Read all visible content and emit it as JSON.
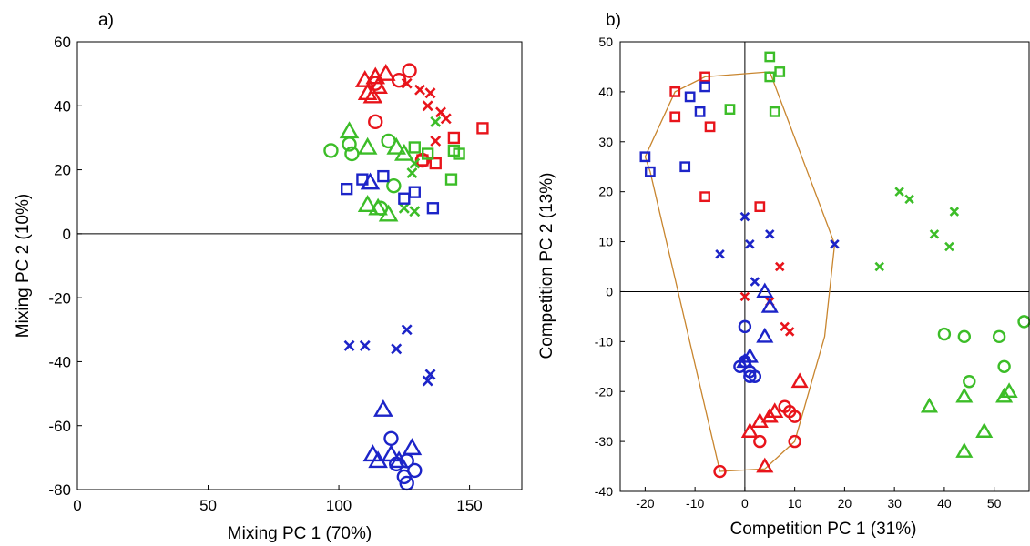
{
  "colors": {
    "red": "#e8141b",
    "green": "#3cbd28",
    "blue": "#1c24c8",
    "hull": "#c8852e",
    "axes": "#000000"
  },
  "chart_data": [
    {
      "type": "scatter",
      "panel_label": "a)",
      "xlabel": "Mixing PC 1 (70%)",
      "ylabel": "Mixing PC 2 (10%)",
      "xlim": [
        0,
        170
      ],
      "ylim": [
        -80,
        60
      ],
      "xticks": [
        0,
        50,
        100,
        150
      ],
      "yticks": [
        -80,
        -60,
        -40,
        -20,
        0,
        20,
        40,
        60
      ],
      "zero_lines": [
        "y"
      ],
      "grid": false,
      "points": [
        {
          "color": "red",
          "marker": "triangle",
          "x": 110,
          "y": 48
        },
        {
          "color": "red",
          "marker": "triangle",
          "x": 114,
          "y": 49
        },
        {
          "color": "red",
          "marker": "triangle",
          "x": 118,
          "y": 50
        },
        {
          "color": "red",
          "marker": "triangle",
          "x": 111,
          "y": 44
        },
        {
          "color": "red",
          "marker": "triangle",
          "x": 115,
          "y": 46
        },
        {
          "color": "red",
          "marker": "triangle",
          "x": 113,
          "y": 43
        },
        {
          "color": "red",
          "marker": "circle",
          "x": 114,
          "y": 47
        },
        {
          "color": "red",
          "marker": "circle",
          "x": 123,
          "y": 48
        },
        {
          "color": "red",
          "marker": "circle",
          "x": 127,
          "y": 51
        },
        {
          "color": "red",
          "marker": "circle",
          "x": 114,
          "y": 35
        },
        {
          "color": "red",
          "marker": "circle",
          "x": 132,
          "y": 23
        },
        {
          "color": "red",
          "marker": "x",
          "x": 126,
          "y": 47
        },
        {
          "color": "red",
          "marker": "x",
          "x": 131,
          "y": 45
        },
        {
          "color": "red",
          "marker": "x",
          "x": 135,
          "y": 44
        },
        {
          "color": "red",
          "marker": "x",
          "x": 134,
          "y": 40
        },
        {
          "color": "red",
          "marker": "x",
          "x": 139,
          "y": 38
        },
        {
          "color": "red",
          "marker": "x",
          "x": 141,
          "y": 36
        },
        {
          "color": "red",
          "marker": "x",
          "x": 137,
          "y": 29
        },
        {
          "color": "red",
          "marker": "square",
          "x": 155,
          "y": 33
        },
        {
          "color": "red",
          "marker": "square",
          "x": 144,
          "y": 30
        },
        {
          "color": "red",
          "marker": "square",
          "x": 137,
          "y": 22
        },
        {
          "color": "red",
          "marker": "square",
          "x": 132,
          "y": 23
        },
        {
          "color": "green",
          "marker": "triangle",
          "x": 104,
          "y": 32
        },
        {
          "color": "green",
          "marker": "triangle",
          "x": 111,
          "y": 27
        },
        {
          "color": "green",
          "marker": "triangle",
          "x": 122,
          "y": 27
        },
        {
          "color": "green",
          "marker": "triangle",
          "x": 125,
          "y": 25
        },
        {
          "color": "green",
          "marker": "triangle",
          "x": 111,
          "y": 9
        },
        {
          "color": "green",
          "marker": "triangle",
          "x": 115,
          "y": 8
        },
        {
          "color": "green",
          "marker": "triangle",
          "x": 119,
          "y": 6
        },
        {
          "color": "green",
          "marker": "circle",
          "x": 97,
          "y": 26
        },
        {
          "color": "green",
          "marker": "circle",
          "x": 104,
          "y": 28
        },
        {
          "color": "green",
          "marker": "circle",
          "x": 105,
          "y": 25
        },
        {
          "color": "green",
          "marker": "circle",
          "x": 119,
          "y": 29
        },
        {
          "color": "green",
          "marker": "circle",
          "x": 121,
          "y": 15
        },
        {
          "color": "green",
          "marker": "circle",
          "x": 116,
          "y": 8
        },
        {
          "color": "green",
          "marker": "x",
          "x": 129,
          "y": 22
        },
        {
          "color": "green",
          "marker": "x",
          "x": 128,
          "y": 19
        },
        {
          "color": "green",
          "marker": "x",
          "x": 125,
          "y": 8
        },
        {
          "color": "green",
          "marker": "x",
          "x": 129,
          "y": 7
        },
        {
          "color": "green",
          "marker": "x",
          "x": 137,
          "y": 35
        },
        {
          "color": "green",
          "marker": "square",
          "x": 129,
          "y": 27
        },
        {
          "color": "green",
          "marker": "square",
          "x": 134,
          "y": 25
        },
        {
          "color": "green",
          "marker": "square",
          "x": 144,
          "y": 26
        },
        {
          "color": "green",
          "marker": "square",
          "x": 146,
          "y": 25
        },
        {
          "color": "green",
          "marker": "square",
          "x": 143,
          "y": 17
        },
        {
          "color": "blue",
          "marker": "square",
          "x": 103,
          "y": 14
        },
        {
          "color": "blue",
          "marker": "square",
          "x": 109,
          "y": 17
        },
        {
          "color": "blue",
          "marker": "square",
          "x": 117,
          "y": 18
        },
        {
          "color": "blue",
          "marker": "square",
          "x": 125,
          "y": 11
        },
        {
          "color": "blue",
          "marker": "square",
          "x": 129,
          "y": 13
        },
        {
          "color": "blue",
          "marker": "square",
          "x": 136,
          "y": 8
        },
        {
          "color": "blue",
          "marker": "triangle",
          "x": 112,
          "y": 16
        },
        {
          "color": "blue",
          "marker": "x",
          "x": 104,
          "y": -35
        },
        {
          "color": "blue",
          "marker": "x",
          "x": 110,
          "y": -35
        },
        {
          "color": "blue",
          "marker": "x",
          "x": 122,
          "y": -36
        },
        {
          "color": "blue",
          "marker": "x",
          "x": 126,
          "y": -30
        },
        {
          "color": "blue",
          "marker": "x",
          "x": 135,
          "y": -44
        },
        {
          "color": "blue",
          "marker": "x",
          "x": 134,
          "y": -46
        },
        {
          "color": "blue",
          "marker": "triangle",
          "x": 117,
          "y": -55
        },
        {
          "color": "blue",
          "marker": "triangle",
          "x": 113,
          "y": -69
        },
        {
          "color": "blue",
          "marker": "triangle",
          "x": 115,
          "y": -71
        },
        {
          "color": "blue",
          "marker": "triangle",
          "x": 120,
          "y": -69
        },
        {
          "color": "blue",
          "marker": "triangle",
          "x": 123,
          "y": -71
        },
        {
          "color": "blue",
          "marker": "triangle",
          "x": 128,
          "y": -67
        },
        {
          "color": "blue",
          "marker": "circle",
          "x": 120,
          "y": -64
        },
        {
          "color": "blue",
          "marker": "circle",
          "x": 122,
          "y": -72
        },
        {
          "color": "blue",
          "marker": "circle",
          "x": 126,
          "y": -71
        },
        {
          "color": "blue",
          "marker": "circle",
          "x": 129,
          "y": -74
        },
        {
          "color": "blue",
          "marker": "circle",
          "x": 125,
          "y": -76
        },
        {
          "color": "blue",
          "marker": "circle",
          "x": 126,
          "y": -78
        }
      ]
    },
    {
      "type": "scatter",
      "panel_label": "b)",
      "xlabel": "Competition PC 1 (31%)",
      "ylabel": "Competition PC 2 (13%)",
      "xlim": [
        -25,
        57
      ],
      "ylim": [
        -40,
        50
      ],
      "xticks": [
        -20,
        -10,
        0,
        10,
        20,
        30,
        40,
        50
      ],
      "yticks": [
        -40,
        -30,
        -20,
        -10,
        0,
        10,
        20,
        30,
        40,
        50
      ],
      "zero_lines": [
        "x",
        "y"
      ],
      "grid": false,
      "hull": [
        [
          -20,
          27
        ],
        [
          -19,
          24
        ],
        [
          -5,
          -36
        ],
        [
          4,
          -35.5
        ],
        [
          10,
          -30
        ],
        [
          16,
          -9
        ],
        [
          18,
          9.5
        ],
        [
          5,
          44
        ],
        [
          -8,
          43
        ],
        [
          -14,
          40
        ],
        [
          -20,
          27
        ]
      ],
      "points": [
        {
          "color": "green",
          "marker": "square",
          "x": 5,
          "y": 47
        },
        {
          "color": "green",
          "marker": "square",
          "x": 5,
          "y": 43
        },
        {
          "color": "green",
          "marker": "square",
          "x": 7,
          "y": 44
        },
        {
          "color": "green",
          "marker": "square",
          "x": 6,
          "y": 36
        },
        {
          "color": "green",
          "marker": "square",
          "x": -3,
          "y": 36.5
        },
        {
          "color": "red",
          "marker": "square",
          "x": -8,
          "y": 43
        },
        {
          "color": "red",
          "marker": "square",
          "x": -14,
          "y": 40
        },
        {
          "color": "red",
          "marker": "square",
          "x": -14,
          "y": 35
        },
        {
          "color": "red",
          "marker": "square",
          "x": -7,
          "y": 33
        },
        {
          "color": "red",
          "marker": "square",
          "x": -8,
          "y": 19
        },
        {
          "color": "red",
          "marker": "square",
          "x": 3,
          "y": 17
        },
        {
          "color": "blue",
          "marker": "square",
          "x": -8,
          "y": 41
        },
        {
          "color": "blue",
          "marker": "square",
          "x": -11,
          "y": 39
        },
        {
          "color": "blue",
          "marker": "square",
          "x": -9,
          "y": 36
        },
        {
          "color": "blue",
          "marker": "square",
          "x": -20,
          "y": 27
        },
        {
          "color": "blue",
          "marker": "square",
          "x": -19,
          "y": 24
        },
        {
          "color": "blue",
          "marker": "square",
          "x": -12,
          "y": 25
        },
        {
          "color": "blue",
          "marker": "x",
          "x": 0,
          "y": 15
        },
        {
          "color": "blue",
          "marker": "x",
          "x": 5,
          "y": 11.5
        },
        {
          "color": "blue",
          "marker": "x",
          "x": 1,
          "y": 9.5
        },
        {
          "color": "blue",
          "marker": "x",
          "x": 18,
          "y": 9.5
        },
        {
          "color": "blue",
          "marker": "x",
          "x": -5,
          "y": 7.5
        },
        {
          "color": "blue",
          "marker": "x",
          "x": 2,
          "y": 2
        },
        {
          "color": "red",
          "marker": "x",
          "x": 7,
          "y": 5
        },
        {
          "color": "red",
          "marker": "x",
          "x": 0,
          "y": -1
        },
        {
          "color": "red",
          "marker": "x",
          "x": 5,
          "y": -2
        },
        {
          "color": "red",
          "marker": "x",
          "x": 8,
          "y": -7
        },
        {
          "color": "red",
          "marker": "x",
          "x": 9,
          "y": -8
        },
        {
          "color": "green",
          "marker": "x",
          "x": 31,
          "y": 20
        },
        {
          "color": "green",
          "marker": "x",
          "x": 33,
          "y": 18.5
        },
        {
          "color": "green",
          "marker": "x",
          "x": 42,
          "y": 16
        },
        {
          "color": "green",
          "marker": "x",
          "x": 38,
          "y": 11.5
        },
        {
          "color": "green",
          "marker": "x",
          "x": 41,
          "y": 9
        },
        {
          "color": "green",
          "marker": "x",
          "x": 27,
          "y": 5
        },
        {
          "color": "blue",
          "marker": "triangle",
          "x": 4,
          "y": 0
        },
        {
          "color": "blue",
          "marker": "triangle",
          "x": 5,
          "y": -3
        },
        {
          "color": "blue",
          "marker": "triangle",
          "x": 4,
          "y": -9
        },
        {
          "color": "blue",
          "marker": "triangle",
          "x": 1,
          "y": -13
        },
        {
          "color": "blue",
          "marker": "triangle",
          "x": 0,
          "y": -14
        },
        {
          "color": "blue",
          "marker": "circle",
          "x": 0,
          "y": -7
        },
        {
          "color": "blue",
          "marker": "circle",
          "x": 0,
          "y": -14
        },
        {
          "color": "blue",
          "marker": "circle",
          "x": -1,
          "y": -15
        },
        {
          "color": "blue",
          "marker": "circle",
          "x": 1,
          "y": -16
        },
        {
          "color": "blue",
          "marker": "circle",
          "x": 1,
          "y": -17
        },
        {
          "color": "blue",
          "marker": "circle",
          "x": 2,
          "y": -17
        },
        {
          "color": "red",
          "marker": "triangle",
          "x": 11,
          "y": -18
        },
        {
          "color": "red",
          "marker": "triangle",
          "x": 3,
          "y": -26
        },
        {
          "color": "red",
          "marker": "triangle",
          "x": 5,
          "y": -25
        },
        {
          "color": "red",
          "marker": "triangle",
          "x": 6,
          "y": -24
        },
        {
          "color": "red",
          "marker": "triangle",
          "x": 1,
          "y": -28
        },
        {
          "color": "red",
          "marker": "triangle",
          "x": 4,
          "y": -35
        },
        {
          "color": "red",
          "marker": "circle",
          "x": 8,
          "y": -23
        },
        {
          "color": "red",
          "marker": "circle",
          "x": 9,
          "y": -24
        },
        {
          "color": "red",
          "marker": "circle",
          "x": 10,
          "y": -25
        },
        {
          "color": "red",
          "marker": "circle",
          "x": 3,
          "y": -30
        },
        {
          "color": "red",
          "marker": "circle",
          "x": 10,
          "y": -30
        },
        {
          "color": "red",
          "marker": "circle",
          "x": -5,
          "y": -36
        },
        {
          "color": "green",
          "marker": "circle",
          "x": 40,
          "y": -8.5
        },
        {
          "color": "green",
          "marker": "circle",
          "x": 44,
          "y": -9
        },
        {
          "color": "green",
          "marker": "circle",
          "x": 51,
          "y": -9
        },
        {
          "color": "green",
          "marker": "circle",
          "x": 56,
          "y": -6
        },
        {
          "color": "green",
          "marker": "circle",
          "x": 45,
          "y": -18
        },
        {
          "color": "green",
          "marker": "circle",
          "x": 52,
          "y": -15
        },
        {
          "color": "green",
          "marker": "triangle",
          "x": 37,
          "y": -23
        },
        {
          "color": "green",
          "marker": "triangle",
          "x": 44,
          "y": -21
        },
        {
          "color": "green",
          "marker": "triangle",
          "x": 53,
          "y": -20
        },
        {
          "color": "green",
          "marker": "triangle",
          "x": 52,
          "y": -21
        },
        {
          "color": "green",
          "marker": "triangle",
          "x": 48,
          "y": -28
        },
        {
          "color": "green",
          "marker": "triangle",
          "x": 44,
          "y": -32
        }
      ]
    }
  ]
}
